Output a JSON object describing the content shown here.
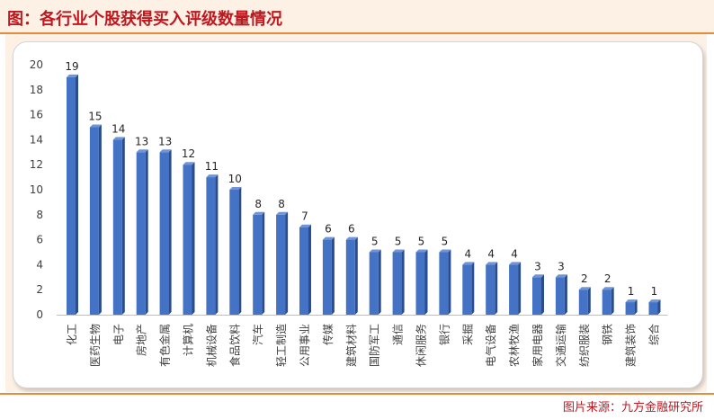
{
  "header": {
    "title": "图：各行业个股获得买入评级数量情况"
  },
  "footer": {
    "source": "图片来源：九方金融研究所"
  },
  "colors": {
    "bar": "#4472c4",
    "bar_side": "#2a4d8f",
    "title": "#c0161e",
    "accent": "#e58b3c"
  },
  "chart_data": {
    "type": "bar",
    "title": "",
    "xlabel": "",
    "ylabel": "",
    "ylim": [
      0,
      20
    ],
    "yticks": [
      0,
      2,
      4,
      6,
      8,
      10,
      12,
      14,
      16,
      18,
      20
    ],
    "grid": false,
    "categories": [
      "化工",
      "医药生物",
      "电子",
      "房地产",
      "有色金属",
      "计算机",
      "机械设备",
      "食品饮料",
      "汽车",
      "轻工制造",
      "公用事业",
      "传媒",
      "建筑材料",
      "国防军工",
      "通信",
      "休闲服务",
      "银行",
      "采掘",
      "电气设备",
      "农林牧渔",
      "家用电器",
      "交通运输",
      "纺织服装",
      "钢铁",
      "建筑装饰",
      "综合"
    ],
    "values": [
      19,
      15,
      14,
      13,
      13,
      12,
      11,
      10,
      8,
      8,
      7,
      6,
      6,
      5,
      5,
      5,
      5,
      4,
      4,
      4,
      3,
      3,
      2,
      2,
      1,
      1
    ]
  }
}
